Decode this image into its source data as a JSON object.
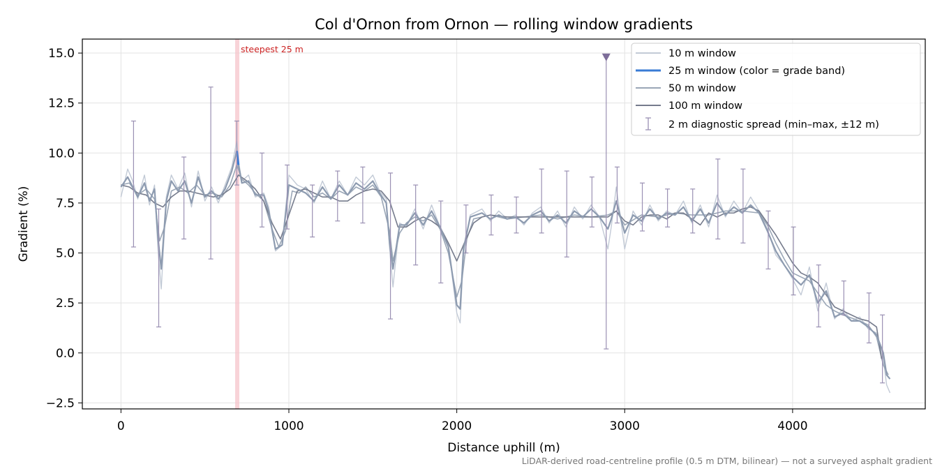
{
  "chart_data": {
    "type": "line",
    "title": "Col d'Ornon from Ornon — rolling window gradients",
    "xlabel": "Distance uphill (m)",
    "ylabel": "Gradient (%)",
    "xlim": [
      -230,
      4790
    ],
    "ylim": [
      -2.8,
      15.7
    ],
    "xticks": [
      0,
      1000,
      2000,
      3000,
      4000
    ],
    "xtick_labels": [
      "0",
      "1000",
      "2000",
      "3000",
      "4000"
    ],
    "yticks": [
      -2.5,
      0.0,
      2.5,
      5.0,
      7.5,
      10.0,
      12.5,
      15.0
    ],
    "ytick_labels": [
      "−2.5",
      "0.0",
      "2.5",
      "5.0",
      "7.5",
      "10.0",
      "12.5",
      "15.0"
    ],
    "grid": true,
    "legend_placement": "top-right",
    "series": [
      {
        "name": "10 m window",
        "color": "#c2cad6",
        "x": [
          0,
          40,
          70,
          100,
          140,
          170,
          200,
          220,
          240,
          270,
          300,
          340,
          380,
          420,
          460,
          500,
          540,
          580,
          620,
          660,
          690,
          700,
          720,
          760,
          800,
          850,
          880,
          920,
          960,
          1000,
          1050,
          1100,
          1150,
          1200,
          1250,
          1300,
          1350,
          1400,
          1450,
          1500,
          1540,
          1580,
          1600,
          1620,
          1660,
          1700,
          1750,
          1800,
          1850,
          1900,
          1950,
          2000,
          2020,
          2040,
          2080,
          2150,
          2200,
          2250,
          2300,
          2350,
          2400,
          2450,
          2500,
          2550,
          2600,
          2650,
          2700,
          2750,
          2800,
          2850,
          2900,
          2920,
          2950,
          3000,
          3050,
          3100,
          3150,
          3200,
          3250,
          3300,
          3350,
          3400,
          3450,
          3500,
          3550,
          3600,
          3650,
          3700,
          3750,
          3800,
          3850,
          3900,
          3950,
          4000,
          4050,
          4100,
          4150,
          4200,
          4250,
          4300,
          4350,
          4400,
          4450,
          4500,
          4540,
          4560,
          4580
        ],
        "values": [
          7.8,
          9.2,
          8.6,
          7.7,
          8.9,
          7.4,
          8.4,
          5.2,
          3.2,
          7.8,
          8.9,
          8.2,
          9.0,
          7.3,
          9.1,
          7.6,
          8.3,
          7.5,
          8.4,
          9.3,
          10.6,
          9.6,
          8.6,
          8.9,
          7.8,
          8.0,
          7.3,
          5.1,
          5.4,
          8.9,
          8.4,
          8.2,
          7.5,
          8.6,
          7.7,
          8.6,
          7.9,
          8.8,
          8.4,
          8.9,
          8.1,
          7.7,
          5.2,
          3.3,
          6.5,
          6.3,
          7.2,
          6.2,
          7.4,
          6.3,
          5.4,
          2.0,
          1.5,
          5.0,
          6.9,
          7.2,
          6.6,
          7.1,
          6.7,
          6.9,
          6.4,
          7.0,
          7.3,
          6.5,
          7.1,
          6.3,
          7.3,
          6.7,
          7.4,
          6.8,
          5.2,
          6.3,
          8.3,
          5.2,
          7.1,
          6.4,
          7.4,
          6.6,
          7.1,
          6.9,
          7.6,
          6.5,
          7.4,
          6.3,
          7.9,
          6.8,
          7.6,
          7.0,
          7.8,
          7.1,
          6.2,
          4.9,
          4.4,
          3.7,
          2.9,
          4.3,
          2.1,
          3.5,
          1.7,
          2.2,
          1.6,
          1.8,
          1.2,
          1.0,
          -0.3,
          -1.6,
          -2.0
        ]
      },
      {
        "name": "25 m window (color = grade band)",
        "color": "#3a7bd5",
        "x": [
          0,
          40,
          70,
          100,
          140,
          170,
          200,
          220,
          240,
          270,
          300,
          340,
          380,
          420,
          460,
          500,
          540,
          580,
          620,
          660,
          690,
          700,
          720,
          760,
          800,
          850,
          880,
          920,
          960,
          1000,
          1050,
          1100,
          1150,
          1200,
          1250,
          1300,
          1350,
          1400,
          1450,
          1500,
          1540,
          1580,
          1600,
          1620,
          1660,
          1700,
          1750,
          1800,
          1850,
          1900,
          1950,
          2000,
          2020,
          2040,
          2080,
          2150,
          2200,
          2250,
          2300,
          2350,
          2400,
          2450,
          2500,
          2550,
          2600,
          2650,
          2700,
          2750,
          2800,
          2850,
          2900,
          2920,
          2950,
          3000,
          3050,
          3100,
          3150,
          3200,
          3250,
          3300,
          3350,
          3400,
          3450,
          3500,
          3550,
          3600,
          3650,
          3700,
          3750,
          3800,
          3850,
          3900,
          3950,
          4000,
          4050,
          4100,
          4150,
          4200,
          4250,
          4300,
          4350,
          4400,
          4450,
          4500,
          4540,
          4560,
          4580
        ],
        "values": [
          8.3,
          8.8,
          8.3,
          7.8,
          8.5,
          7.6,
          8.2,
          5.8,
          4.2,
          7.6,
          8.6,
          8.1,
          8.6,
          7.5,
          8.8,
          7.8,
          8.1,
          7.7,
          8.2,
          9.1,
          10.1,
          9.4,
          8.5,
          8.6,
          7.9,
          7.9,
          7.1,
          5.2,
          5.4,
          8.4,
          8.2,
          8.0,
          7.6,
          8.3,
          7.7,
          8.4,
          7.9,
          8.5,
          8.2,
          8.6,
          8.0,
          7.5,
          5.5,
          4.2,
          6.4,
          6.4,
          7.0,
          6.4,
          7.1,
          6.3,
          5.3,
          2.4,
          2.2,
          5.2,
          6.8,
          7.0,
          6.7,
          6.9,
          6.7,
          6.8,
          6.5,
          6.9,
          7.1,
          6.6,
          6.9,
          6.5,
          7.1,
          6.8,
          7.2,
          6.8,
          6.2,
          6.7,
          7.6,
          6.0,
          6.9,
          6.6,
          7.2,
          6.7,
          7.0,
          6.9,
          7.3,
          6.6,
          7.2,
          6.5,
          7.5,
          6.9,
          7.3,
          7.0,
          7.4,
          7.0,
          6.1,
          5.1,
          4.4,
          3.8,
          3.4,
          3.9,
          2.5,
          3.1,
          1.8,
          2.0,
          1.6,
          1.6,
          1.3,
          0.9,
          0.0,
          -1.1,
          -1.3
        ]
      },
      {
        "name": "50 m window",
        "color": "#9aa6b6",
        "x": [
          0,
          50,
          100,
          150,
          200,
          230,
          260,
          300,
          350,
          400,
          450,
          500,
          550,
          600,
          650,
          690,
          720,
          760,
          800,
          850,
          900,
          940,
          980,
          1020,
          1060,
          1100,
          1150,
          1200,
          1250,
          1300,
          1350,
          1400,
          1450,
          1500,
          1550,
          1600,
          1620,
          1660,
          1700,
          1750,
          1800,
          1850,
          1900,
          1950,
          2000,
          2030,
          2060,
          2100,
          2200,
          2300,
          2400,
          2500,
          2600,
          2700,
          2800,
          2900,
          2950,
          3000,
          3100,
          3200,
          3300,
          3400,
          3500,
          3600,
          3700,
          3800,
          3850,
          3900,
          3950,
          4000,
          4050,
          4100,
          4200,
          4250,
          4300,
          4400,
          4450,
          4500,
          4540,
          4570
        ],
        "values": [
          8.4,
          8.5,
          7.9,
          8.2,
          7.7,
          5.6,
          6.3,
          8.1,
          8.3,
          8.0,
          8.4,
          7.9,
          8.0,
          7.8,
          8.4,
          9.4,
          8.7,
          8.4,
          8.0,
          7.6,
          6.2,
          5.3,
          6.1,
          8.1,
          8.0,
          8.3,
          7.8,
          8.0,
          7.7,
          8.1,
          7.9,
          8.3,
          8.1,
          8.4,
          7.8,
          6.1,
          4.6,
          6.0,
          6.5,
          6.8,
          6.6,
          6.9,
          6.2,
          5.0,
          2.8,
          3.6,
          5.7,
          6.7,
          6.9,
          6.7,
          6.8,
          6.9,
          6.7,
          6.9,
          6.8,
          6.9,
          7.1,
          6.4,
          6.9,
          6.8,
          7.0,
          6.9,
          6.9,
          7.1,
          7.1,
          7.0,
          6.4,
          5.5,
          4.7,
          4.0,
          3.8,
          3.6,
          2.4,
          2.1,
          1.9,
          1.6,
          1.4,
          0.8,
          -0.6,
          -1.1
        ]
      },
      {
        "name": "100 m window",
        "color": "#757b8c",
        "x": [
          0,
          50,
          100,
          150,
          200,
          250,
          300,
          350,
          400,
          450,
          500,
          550,
          600,
          650,
          700,
          750,
          800,
          850,
          900,
          950,
          1000,
          1050,
          1100,
          1150,
          1200,
          1250,
          1300,
          1350,
          1400,
          1450,
          1500,
          1550,
          1600,
          1650,
          1700,
          1750,
          1800,
          1850,
          1900,
          1950,
          2000,
          2050,
          2100,
          2150,
          2200,
          2300,
          2400,
          2500,
          2600,
          2700,
          2800,
          2900,
          2950,
          3000,
          3050,
          3100,
          3150,
          3200,
          3250,
          3300,
          3350,
          3400,
          3450,
          3500,
          3550,
          3600,
          3650,
          3700,
          3750,
          3800,
          3850,
          3900,
          3950,
          4000,
          4050,
          4100,
          4150,
          4200,
          4250,
          4300,
          4350,
          4400,
          4450,
          4500,
          4530
        ],
        "values": [
          8.4,
          8.3,
          8.0,
          7.9,
          7.5,
          7.3,
          7.8,
          8.1,
          8.1,
          8.0,
          7.9,
          7.8,
          7.9,
          8.2,
          8.9,
          8.6,
          8.2,
          7.6,
          6.5,
          5.7,
          6.9,
          8.1,
          8.2,
          8.0,
          7.8,
          7.8,
          7.6,
          7.6,
          7.9,
          8.1,
          8.2,
          8.1,
          7.6,
          6.3,
          6.3,
          6.6,
          6.8,
          6.6,
          6.3,
          5.5,
          4.6,
          5.6,
          6.5,
          6.8,
          6.9,
          6.8,
          6.8,
          6.8,
          6.8,
          6.8,
          6.8,
          6.8,
          7.1,
          6.6,
          6.4,
          6.8,
          6.9,
          6.9,
          6.7,
          7.0,
          7.0,
          6.7,
          6.4,
          7.0,
          6.8,
          7.0,
          7.0,
          7.2,
          7.3,
          7.1,
          6.5,
          5.9,
          5.2,
          4.5,
          4.0,
          3.8,
          3.5,
          2.9,
          2.3,
          2.1,
          1.9,
          1.7,
          1.6,
          1.3,
          -0.3
        ]
      }
    ],
    "errorbars": {
      "name": "2 m diagnostic spread (min–max, ±12 m)",
      "color": "#9a90b3",
      "x": [
        75,
        225,
        375,
        535,
        690,
        840,
        990,
        1140,
        1290,
        1440,
        1605,
        1755,
        1905,
        2055,
        2205,
        2355,
        2505,
        2655,
        2805,
        2890,
        2955,
        3105,
        3255,
        3405,
        3555,
        3705,
        3855,
        4005,
        4155,
        4305,
        4455,
        4535
      ],
      "low": [
        5.3,
        1.3,
        5.7,
        4.7,
        8.4,
        6.3,
        6.2,
        5.8,
        6.6,
        6.5,
        1.7,
        4.4,
        3.5,
        5.0,
        5.9,
        6.0,
        6.0,
        4.8,
        6.3,
        0.2,
        6.5,
        6.1,
        6.3,
        6.0,
        5.7,
        5.5,
        4.2,
        2.9,
        1.3,
        1.9,
        0.5,
        -1.5
      ],
      "high": [
        11.6,
        7.2,
        9.8,
        13.3,
        11.6,
        10.0,
        9.4,
        8.4,
        9.1,
        9.3,
        9.0,
        8.4,
        7.6,
        7.4,
        7.9,
        7.8,
        9.2,
        9.1,
        8.8,
        14.8,
        9.3,
        8.5,
        8.2,
        8.2,
        9.7,
        9.2,
        7.1,
        6.3,
        4.4,
        3.6,
        3.0,
        1.9
      ]
    },
    "annotations": [
      {
        "text": "steepest 25 m",
        "x_start": 680,
        "x_end": 705,
        "color": "#cc2222"
      }
    ],
    "marker": {
      "x": 2890,
      "y": 14.8,
      "color": "#7d6d99"
    },
    "footnote": "LiDAR-derived road-centreline profile (0.5 m DTM, bilinear) — not a surveyed asphalt gradient"
  }
}
